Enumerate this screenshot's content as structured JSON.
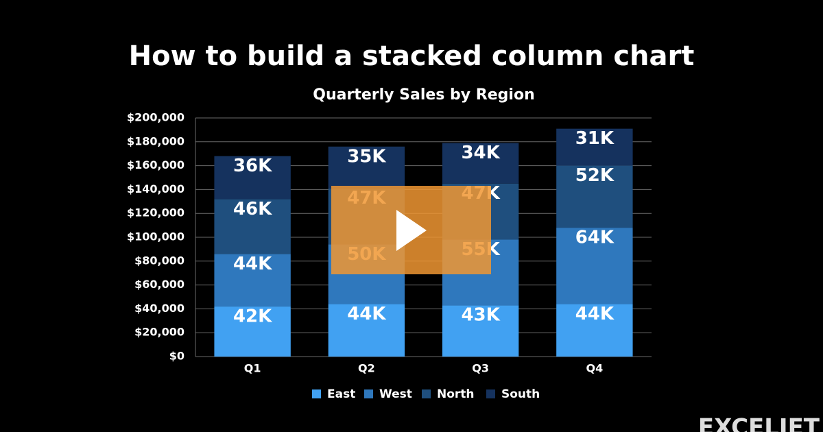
{
  "video_title": "How to build a stacked column chart",
  "brand": "EXCELJET",
  "chart_data": {
    "type": "stacked_bar",
    "title": "Quarterly Sales by Region",
    "categories": [
      "Q1",
      "Q2",
      "Q3",
      "Q4"
    ],
    "series": [
      {
        "name": "East",
        "color": "#41a1f2",
        "values": [
          42000,
          44000,
          43000,
          44000
        ],
        "value_labels": [
          "42K",
          "44K",
          "43K",
          "44K"
        ]
      },
      {
        "name": "West",
        "color": "#2f78bd",
        "values": [
          44000,
          50000,
          55000,
          64000
        ],
        "value_labels": [
          "44K",
          "50K",
          "55K",
          "64K"
        ]
      },
      {
        "name": "North",
        "color": "#1f4f7e",
        "values": [
          46000,
          47000,
          47000,
          52000
        ],
        "value_labels": [
          "46K",
          "47K",
          "47K",
          "52K"
        ]
      },
      {
        "name": "South",
        "color": "#15325e",
        "values": [
          36000,
          35000,
          34000,
          31000
        ],
        "value_labels": [
          "36K",
          "35K",
          "34K",
          "31K"
        ]
      }
    ],
    "ylim": [
      0,
      200000
    ],
    "yticks": [
      {
        "value": 0,
        "label": "$0"
      },
      {
        "value": 20000,
        "label": "$20,000"
      },
      {
        "value": 40000,
        "label": "$40,000"
      },
      {
        "value": 60000,
        "label": "$60,000"
      },
      {
        "value": 80000,
        "label": "$80,000"
      },
      {
        "value": 100000,
        "label": "$100,000"
      },
      {
        "value": 120000,
        "label": "$120,000"
      },
      {
        "value": 140000,
        "label": "$140,000"
      },
      {
        "value": 160000,
        "label": "$160,000"
      },
      {
        "value": 180000,
        "label": "$180,000"
      },
      {
        "value": 200000,
        "label": "$200,000"
      }
    ],
    "grid": true,
    "legend": "bottom"
  }
}
